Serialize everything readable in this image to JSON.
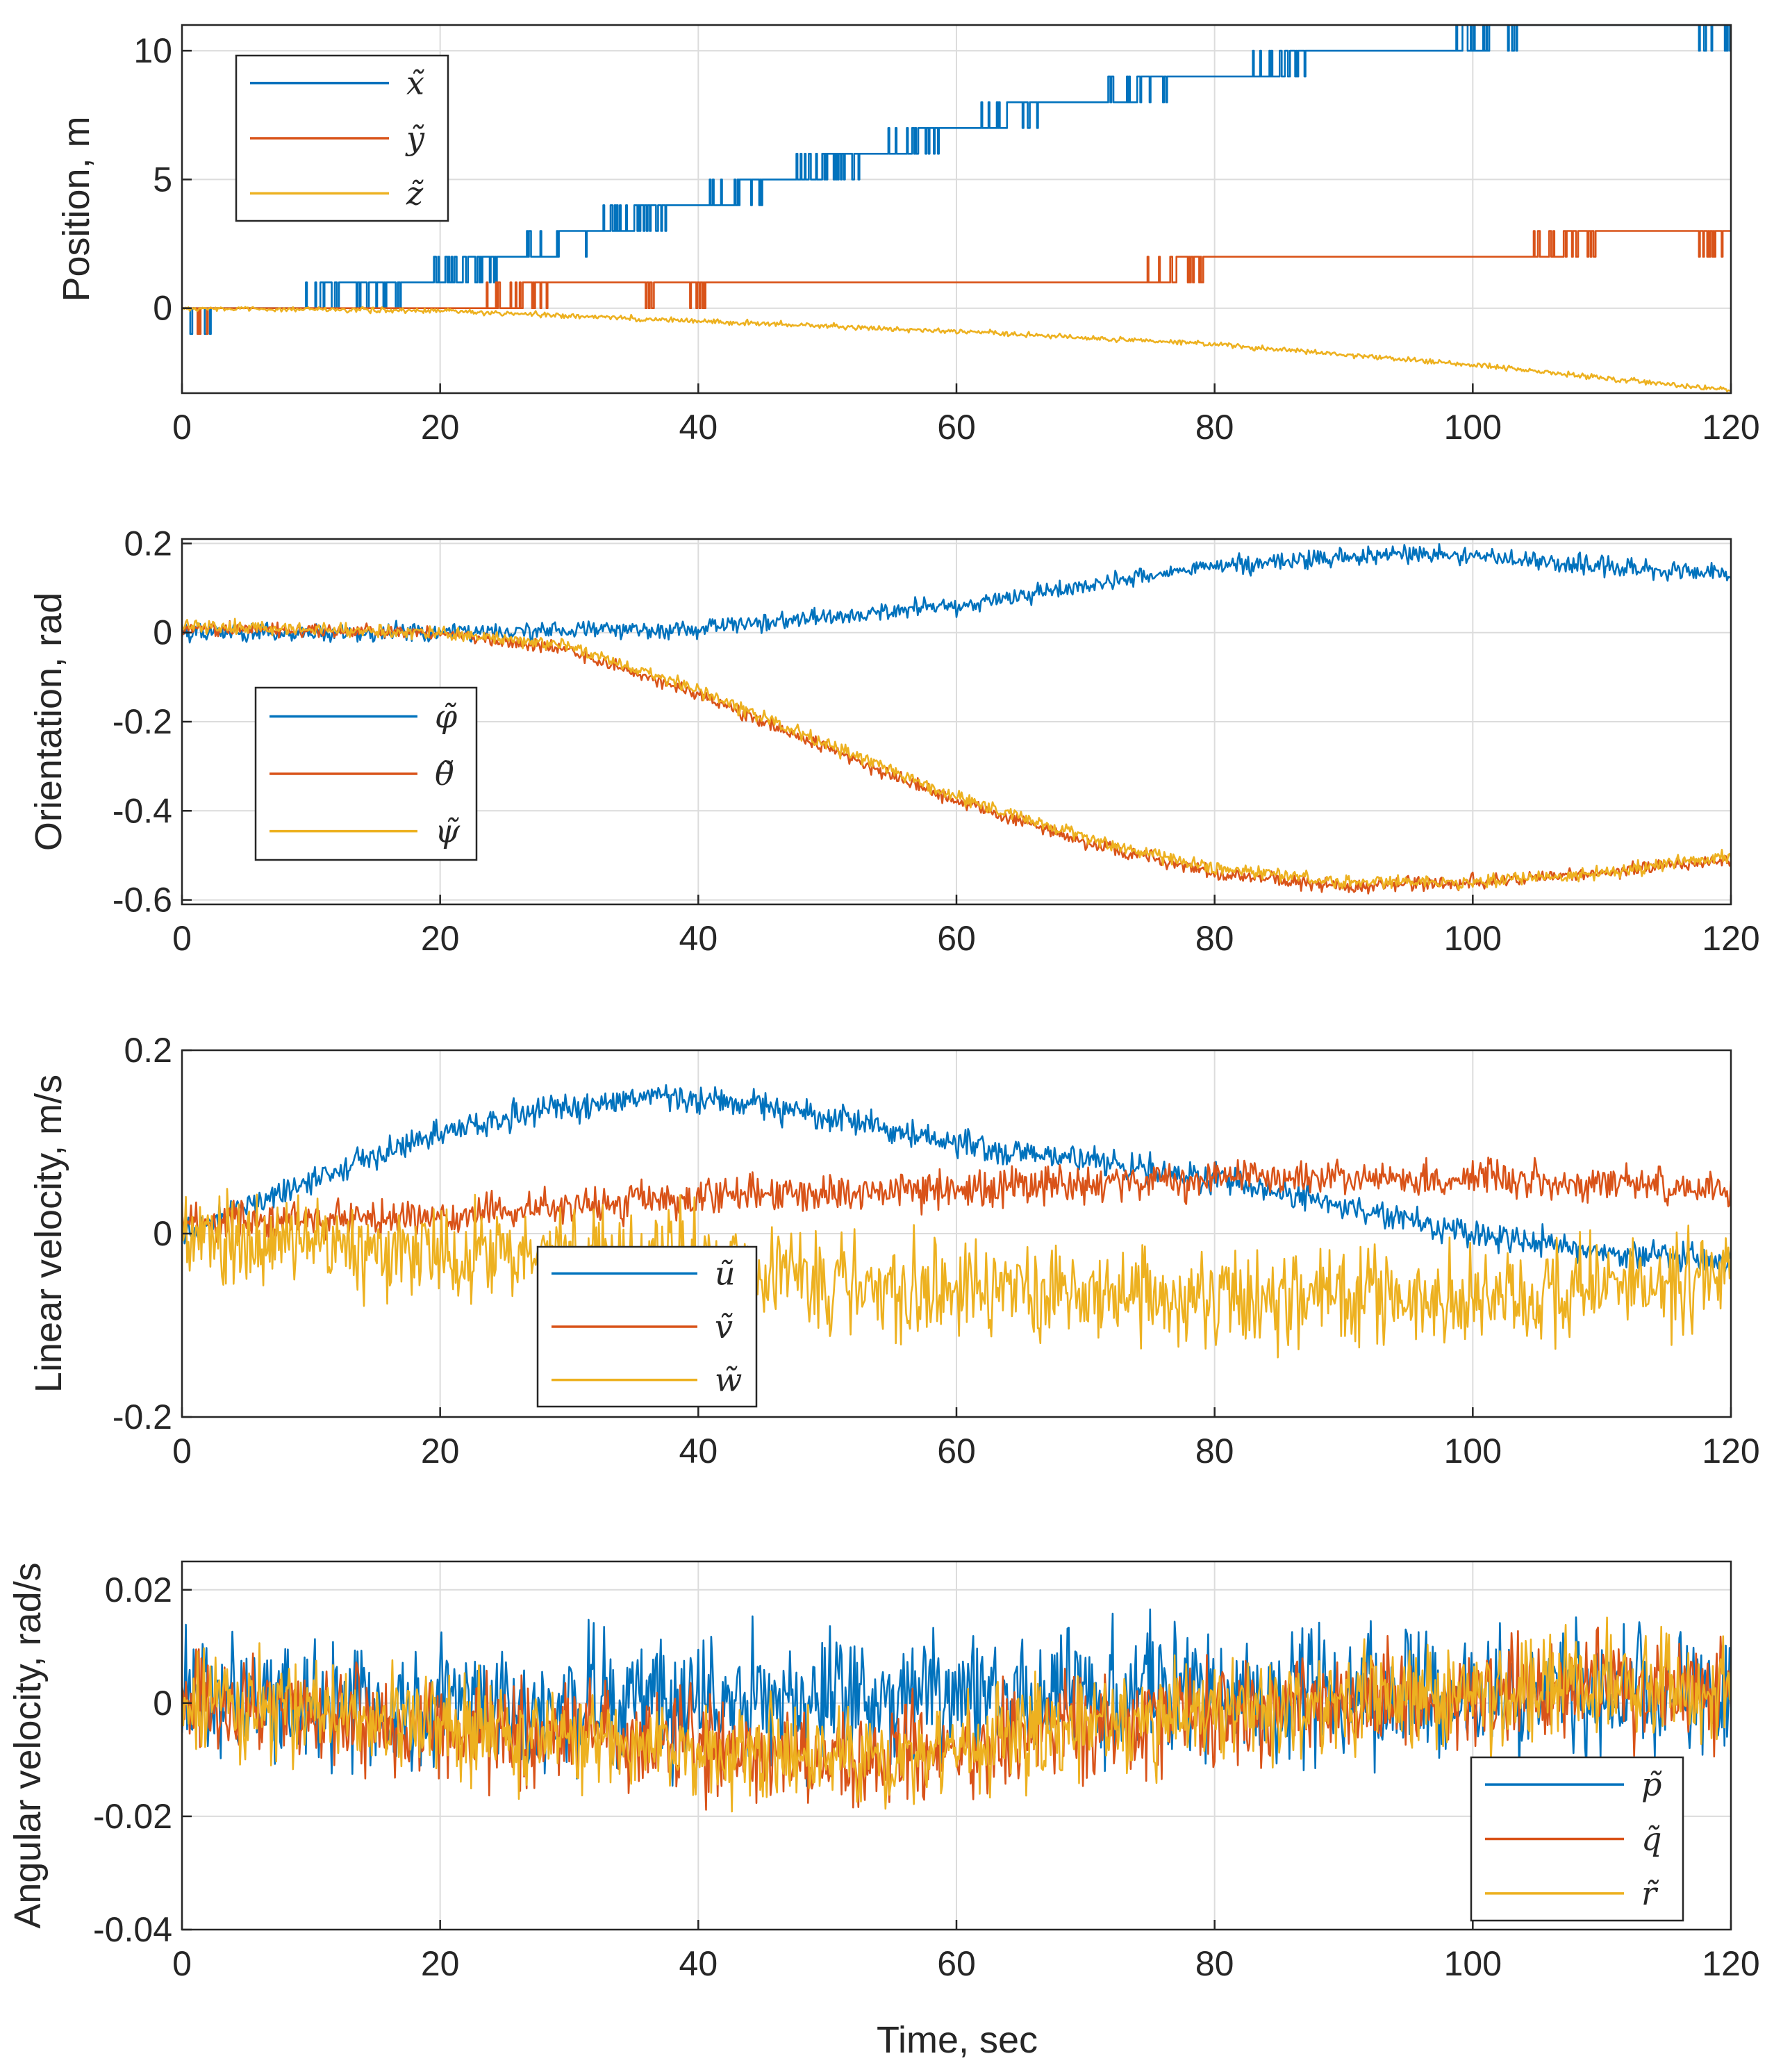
{
  "figure": {
    "xlabel": "Time, sec"
  },
  "colors": {
    "blue": "#0072BD",
    "orange": "#D95319",
    "yellow": "#EDB120"
  },
  "chart_data": [
    {
      "type": "line",
      "id": "position",
      "ylabel": "Position, m",
      "xlim": [
        0,
        120
      ],
      "ylim": [
        -3.3,
        11
      ],
      "xticks": [
        0,
        20,
        40,
        60,
        80,
        100,
        120
      ],
      "yticks": [
        0,
        5,
        10
      ],
      "ytick_labels": [
        "0",
        "5",
        "10"
      ],
      "grid": true,
      "legend": "top-left",
      "series": [
        {
          "name": "x̃",
          "color": "#0072BD",
          "kind": "steps",
          "noise": 0.5,
          "steps": [
            [
              0,
              0
            ],
            [
              11,
              1
            ],
            [
              15,
              1
            ],
            [
              22,
              2
            ],
            [
              29,
              3
            ],
            [
              35,
              4
            ],
            [
              43,
              5
            ],
            [
              50,
              6
            ],
            [
              57,
              7
            ],
            [
              64,
              8
            ],
            [
              74,
              9
            ],
            [
              85,
              10
            ],
            [
              101,
              11
            ],
            [
              120,
              11
            ]
          ]
        },
        {
          "name": "ỹ",
          "color": "#D95319",
          "kind": "steps",
          "noise": 0.5,
          "steps": [
            [
              0,
              0
            ],
            [
              26,
              1
            ],
            [
              38,
              1
            ],
            [
              77,
              2
            ],
            [
              107,
              3
            ],
            [
              120,
              3
            ]
          ]
        },
        {
          "name": "z̃",
          "color": "#EDB120",
          "kind": "curve",
          "noise": 0.1,
          "points": [
            [
              0,
              0
            ],
            [
              20,
              -0.1
            ],
            [
              40,
              -0.5
            ],
            [
              60,
              -0.9
            ],
            [
              80,
              -1.4
            ],
            [
              100,
              -2.2
            ],
            [
              120,
              -3.2
            ]
          ]
        }
      ]
    },
    {
      "type": "line",
      "id": "orientation",
      "ylabel": "Orientation, rad",
      "xlim": [
        0,
        120
      ],
      "ylim": [
        -0.61,
        0.21
      ],
      "xticks": [
        0,
        20,
        40,
        60,
        80,
        100,
        120
      ],
      "yticks": [
        0.2,
        0,
        -0.2,
        -0.4,
        -0.6
      ],
      "ytick_labels": [
        "0.2",
        "0",
        "-0.2",
        "-0.4",
        "-0.6"
      ],
      "grid": true,
      "legend": "middle-left",
      "series": [
        {
          "name": "φ̃",
          "color": "#0072BD",
          "kind": "curve",
          "noise": 0.02,
          "points": [
            [
              0,
              0
            ],
            [
              20,
              0
            ],
            [
              40,
              0.01
            ],
            [
              60,
              0.06
            ],
            [
              80,
              0.15
            ],
            [
              95,
              0.18
            ],
            [
              110,
              0.15
            ],
            [
              120,
              0.13
            ]
          ]
        },
        {
          "name": "θ̃",
          "color": "#D95319",
          "kind": "curve",
          "noise": 0.015,
          "points": [
            [
              0,
              0.01
            ],
            [
              20,
              0
            ],
            [
              30,
              -0.04
            ],
            [
              40,
              -0.14
            ],
            [
              50,
              -0.26
            ],
            [
              60,
              -0.38
            ],
            [
              70,
              -0.47
            ],
            [
              80,
              -0.54
            ],
            [
              90,
              -0.57
            ],
            [
              100,
              -0.56
            ],
            [
              110,
              -0.54
            ],
            [
              120,
              -0.51
            ]
          ]
        },
        {
          "name": "ψ̃",
          "color": "#EDB120",
          "kind": "curve",
          "noise": 0.015,
          "points": [
            [
              0,
              0.015
            ],
            [
              20,
              0
            ],
            [
              30,
              -0.03
            ],
            [
              40,
              -0.13
            ],
            [
              50,
              -0.25
            ],
            [
              60,
              -0.37
            ],
            [
              70,
              -0.46
            ],
            [
              80,
              -0.53
            ],
            [
              90,
              -0.56
            ],
            [
              100,
              -0.56
            ],
            [
              110,
              -0.54
            ],
            [
              120,
              -0.5
            ]
          ]
        }
      ]
    },
    {
      "type": "line",
      "id": "linear-velocity",
      "ylabel": "Linear velocity, m/s",
      "xlim": [
        0,
        120
      ],
      "ylim": [
        -0.2,
        0.2
      ],
      "xticks": [
        0,
        20,
        40,
        60,
        80,
        100,
        120
      ],
      "yticks": [
        0.2,
        0,
        -0.2
      ],
      "ytick_labels": [
        "0.2",
        "0",
        "-0.2"
      ],
      "grid": true,
      "legend": "bottom-center",
      "series": [
        {
          "name": "ũ",
          "color": "#0072BD",
          "kind": "curve",
          "noise": 0.015,
          "points": [
            [
              0,
              0
            ],
            [
              10,
              0.06
            ],
            [
              20,
              0.11
            ],
            [
              30,
              0.14
            ],
            [
              38,
              0.15
            ],
            [
              50,
              0.13
            ],
            [
              60,
              0.1
            ],
            [
              70,
              0.08
            ],
            [
              80,
              0.06
            ],
            [
              90,
              0.03
            ],
            [
              100,
              0
            ],
            [
              110,
              -0.02
            ],
            [
              120,
              -0.03
            ]
          ]
        },
        {
          "name": "ṽ",
          "color": "#D95319",
          "kind": "curve",
          "noise": 0.02,
          "points": [
            [
              0,
              0.01
            ],
            [
              20,
              0.02
            ],
            [
              40,
              0.04
            ],
            [
              60,
              0.05
            ],
            [
              80,
              0.06
            ],
            [
              100,
              0.06
            ],
            [
              120,
              0.05
            ]
          ]
        },
        {
          "name": "w̃",
          "color": "#EDB120",
          "kind": "curve",
          "noise": 0.05,
          "points": [
            [
              0,
              0
            ],
            [
              20,
              -0.02
            ],
            [
              40,
              -0.03
            ],
            [
              50,
              -0.06
            ],
            [
              60,
              -0.06
            ],
            [
              80,
              -0.07
            ],
            [
              100,
              -0.07
            ],
            [
              120,
              -0.05
            ]
          ]
        }
      ]
    },
    {
      "type": "line",
      "id": "angular-velocity",
      "ylabel": "Angular velocity, rad/s",
      "xlim": [
        0,
        120
      ],
      "ylim": [
        -0.04,
        0.025
      ],
      "xticks": [
        0,
        20,
        40,
        60,
        80,
        100,
        120
      ],
      "yticks": [
        0.02,
        0,
        -0.02,
        -0.04
      ],
      "ytick_labels": [
        "0.02",
        "0",
        "-0.02",
        "-0.04"
      ],
      "grid": true,
      "legend": "bottom-right",
      "series": [
        {
          "name": "p̃",
          "color": "#0072BD",
          "kind": "curve",
          "noise": 0.011,
          "points": [
            [
              0,
              0
            ],
            [
              40,
              0
            ],
            [
              60,
              0.002
            ],
            [
              80,
              0.001
            ],
            [
              100,
              0.002
            ],
            [
              120,
              0.002
            ]
          ]
        },
        {
          "name": "q̃",
          "color": "#D95319",
          "kind": "curve",
          "noise": 0.009,
          "points": [
            [
              0,
              0
            ],
            [
              20,
              -0.004
            ],
            [
              40,
              -0.008
            ],
            [
              55,
              -0.01
            ],
            [
              70,
              -0.004
            ],
            [
              90,
              0
            ],
            [
              110,
              0.003
            ],
            [
              120,
              0.002
            ]
          ]
        },
        {
          "name": "r̃",
          "color": "#EDB120",
          "kind": "curve",
          "noise": 0.009,
          "points": [
            [
              0,
              0
            ],
            [
              20,
              -0.004
            ],
            [
              40,
              -0.008
            ],
            [
              55,
              -0.01
            ],
            [
              70,
              -0.004
            ],
            [
              90,
              0
            ],
            [
              110,
              0.003
            ],
            [
              120,
              0.002
            ]
          ]
        }
      ]
    }
  ]
}
